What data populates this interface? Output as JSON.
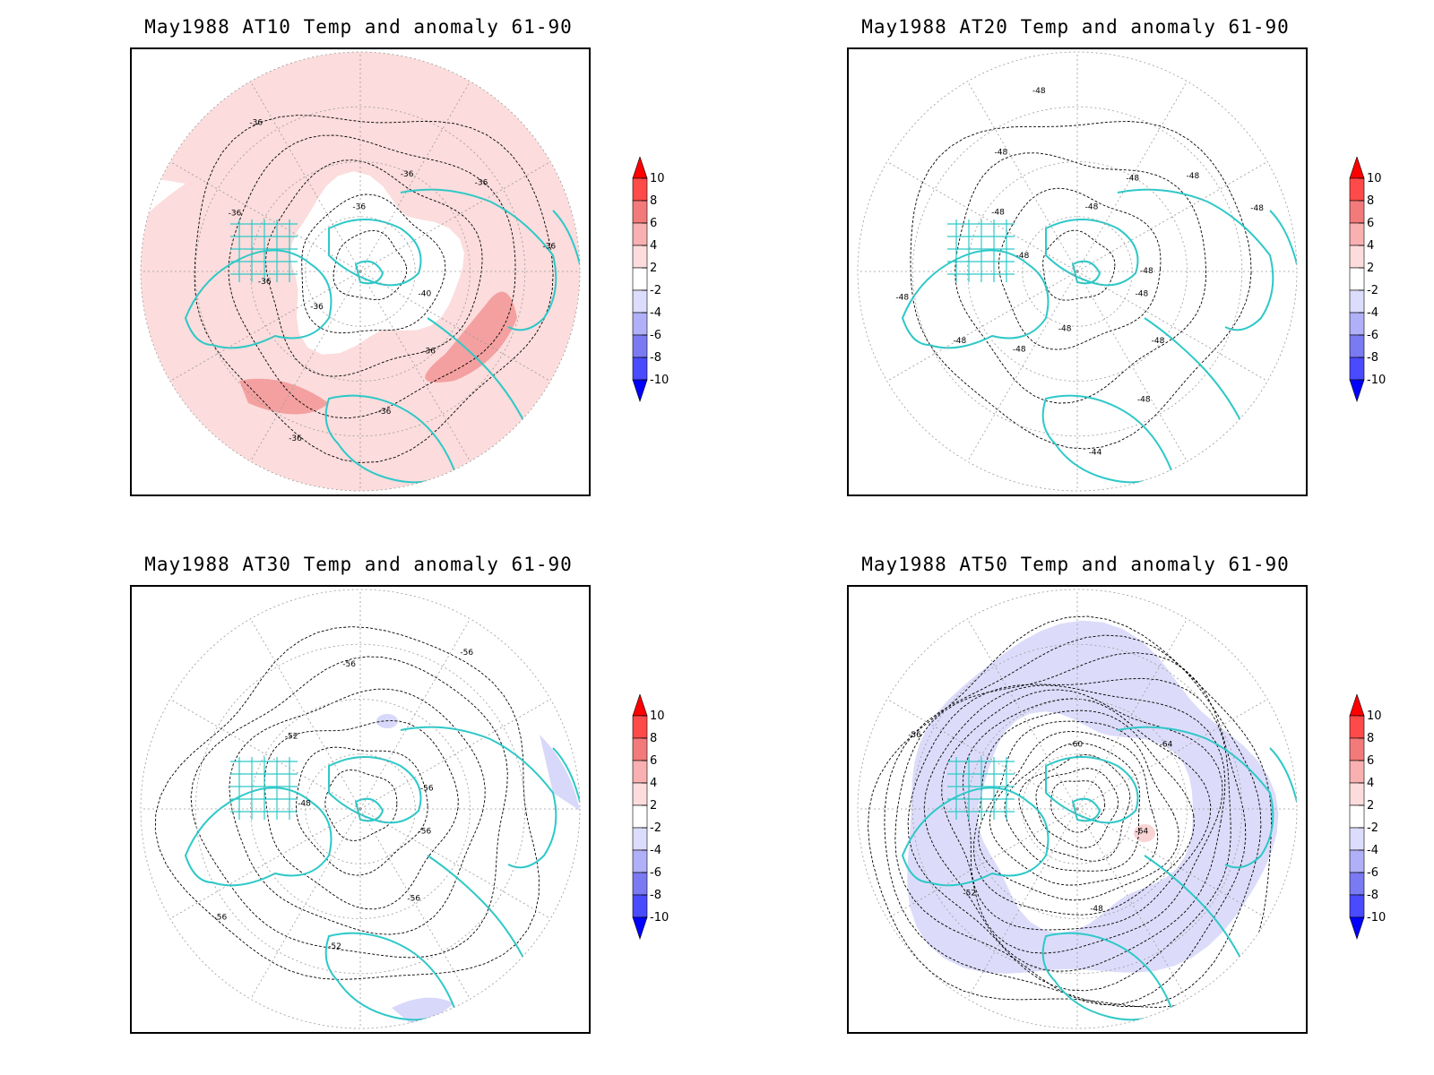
{
  "panels": [
    {
      "title": "May1988 AT10 Temp and anomaly 61-90",
      "contour_labels": [
        "-40",
        "-36",
        "-36",
        "-36",
        "-36",
        "-36",
        "-36",
        "-36",
        "-36",
        "-36",
        "-36",
        "-36"
      ],
      "anomaly": "positive"
    },
    {
      "title": "May1988 AT20 Temp and anomaly 61-90",
      "contour_labels": [
        "-48",
        "-48",
        "-48",
        "-44",
        "-48",
        "-48",
        "-48",
        "-48",
        "-48",
        "-48",
        "-48",
        "-48",
        "-48",
        "-48",
        "-48",
        "-48",
        "-48"
      ],
      "anomaly": "none"
    },
    {
      "title": "May1988 AT30 Temp and anomaly 61-90",
      "contour_labels": [
        "-56",
        "-56",
        "-52",
        "-56",
        "-48",
        "-52",
        "-56",
        "-56",
        "-56"
      ],
      "anomaly": "slight-negative"
    },
    {
      "title": "May1988 AT50 Temp and anomaly 61-90",
      "contour_labels": [
        "-64",
        "-48",
        "-52",
        "-56",
        "-60",
        "-64"
      ],
      "anomaly": "negative"
    }
  ],
  "colorbar": {
    "ticks": [
      "10",
      "8",
      "6",
      "4",
      "2",
      "-2",
      "-4",
      "-6",
      "-8",
      "-10"
    ],
    "colors": [
      "#ff0000",
      "#ff4a4a",
      "#f27a7a",
      "#f8b0b0",
      "#fcdcdc",
      "#ffffff",
      "#dcdcfc",
      "#b0b0f8",
      "#7a7af2",
      "#4a4aff",
      "#0000ff"
    ]
  },
  "colors": {
    "coast": "#2ec8c8",
    "contour": "#000000",
    "grid": "#9a9a9a"
  }
}
